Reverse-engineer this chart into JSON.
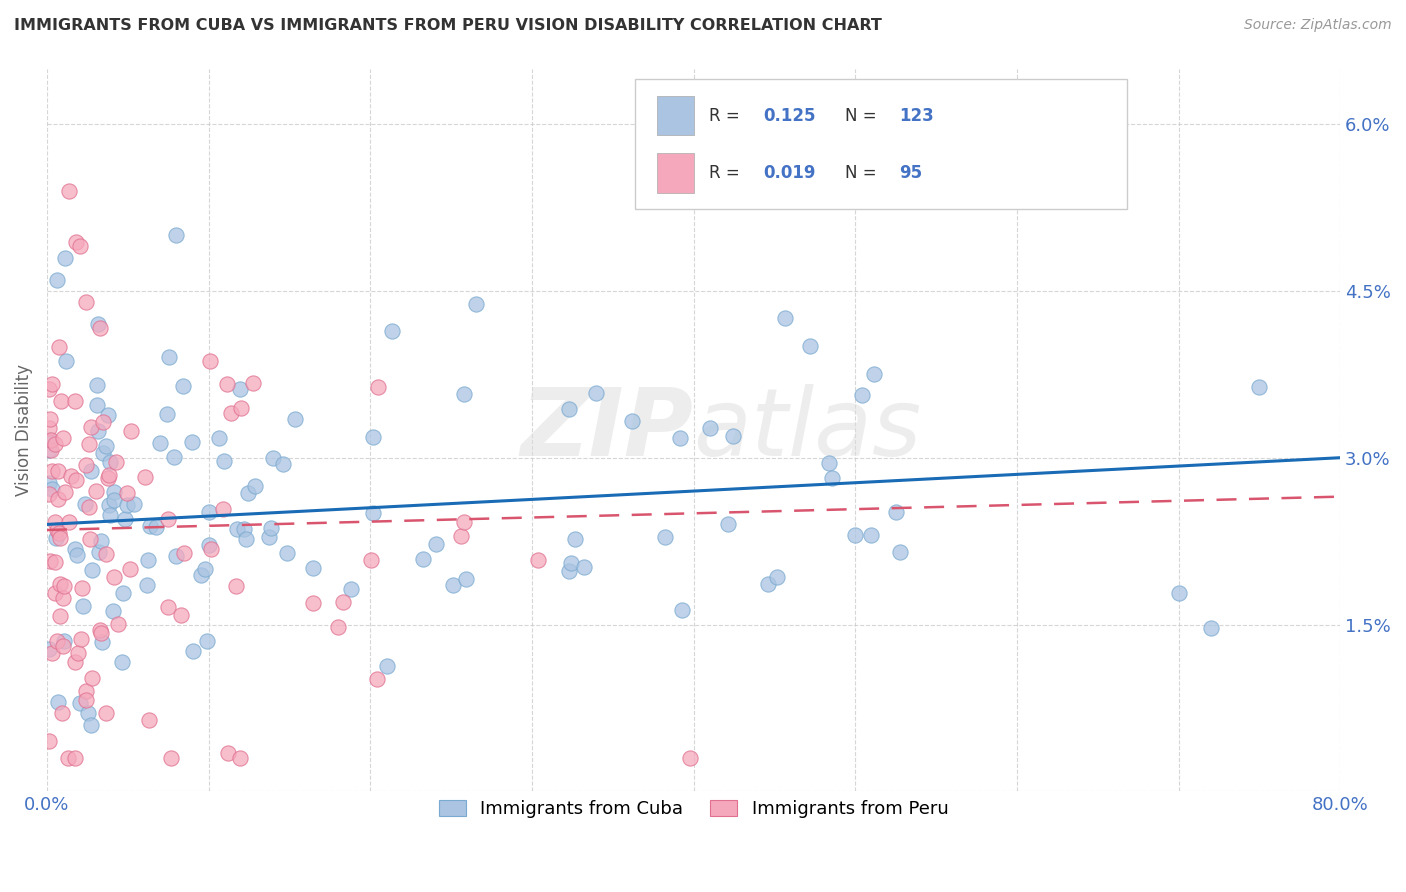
{
  "title": "IMMIGRANTS FROM CUBA VS IMMIGRANTS FROM PERU VISION DISABILITY CORRELATION CHART",
  "source": "Source: ZipAtlas.com",
  "ylabel": "Vision Disability",
  "xlim": [
    0.0,
    0.8
  ],
  "ylim": [
    0.0,
    0.065
  ],
  "cuba_color": "#aac4e2",
  "cuba_edge_color": "#7aaad0",
  "peru_color": "#f5a8bc",
  "peru_edge_color": "#e07090",
  "cuba_line_color": "#1a6bb5",
  "peru_line_color": "#d9556e",
  "R_cuba": 0.125,
  "N_cuba": 123,
  "R_peru": 0.019,
  "N_peru": 95,
  "background_color": "#ffffff",
  "grid_color": "#cccccc",
  "watermark": "ZIPatlas",
  "label_color": "#4472c4",
  "text_color": "#333333",
  "ylabel_color": "#666666"
}
